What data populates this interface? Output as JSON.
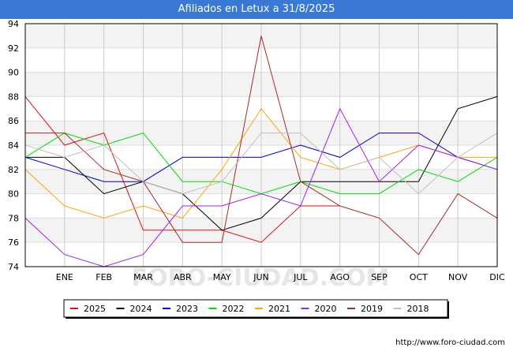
{
  "header": {
    "title": "Afiliados en Letux a 31/8/2025"
  },
  "footer": {
    "url": "http://www.foro-ciudad.com"
  },
  "watermark": "FORO-CIUDAD.COM",
  "chart_data": {
    "type": "line",
    "title": "Afiliados en Letux a 31/8/2025",
    "xlabel": "",
    "ylabel": "",
    "categories": [
      "",
      "ENE",
      "FEB",
      "MAR",
      "ABR",
      "MAY",
      "JUN",
      "JUL",
      "AGO",
      "SEP",
      "OCT",
      "NOV",
      "DIC"
    ],
    "ylim": [
      74,
      94
    ],
    "yticks": [
      74,
      76,
      78,
      80,
      82,
      84,
      86,
      88,
      90,
      92,
      94
    ],
    "grid": true,
    "legend_position": "bottom",
    "series": [
      {
        "name": "2025",
        "color": "#dd1111",
        "values": [
          88,
          84,
          85,
          77,
          77,
          77,
          76,
          79,
          79,
          null,
          null,
          null,
          null
        ]
      },
      {
        "name": "2024",
        "color": "#000000",
        "values": [
          83,
          83,
          80,
          81,
          80,
          77,
          78,
          81,
          81,
          81,
          81,
          87,
          88
        ]
      },
      {
        "name": "2023",
        "color": "#0000cc",
        "values": [
          83,
          82,
          81,
          81,
          83,
          83,
          83,
          84,
          83,
          85,
          85,
          83,
          82
        ]
      },
      {
        "name": "2022",
        "color": "#00dd00",
        "values": [
          83,
          85,
          84,
          85,
          81,
          81,
          80,
          81,
          80,
          80,
          82,
          81,
          83
        ]
      },
      {
        "name": "2021",
        "color": "#ffa500",
        "values": [
          82,
          79,
          78,
          79,
          78,
          82,
          87,
          83,
          82,
          83,
          84,
          83,
          83
        ]
      },
      {
        "name": "2020",
        "color": "#a020f0",
        "values": [
          78,
          75,
          74,
          75,
          79,
          79,
          80,
          79,
          87,
          81,
          84,
          83,
          82
        ]
      },
      {
        "name": "2019",
        "color": "#a52a2a",
        "values": [
          85,
          85,
          82,
          81,
          76,
          76,
          93,
          81,
          79,
          78,
          75,
          80,
          78
        ]
      },
      {
        "name": "2018",
        "color": "#c0c0c0",
        "values": [
          84,
          83,
          84,
          81,
          80,
          81,
          85,
          85,
          82,
          83,
          80,
          83,
          85
        ]
      }
    ]
  }
}
